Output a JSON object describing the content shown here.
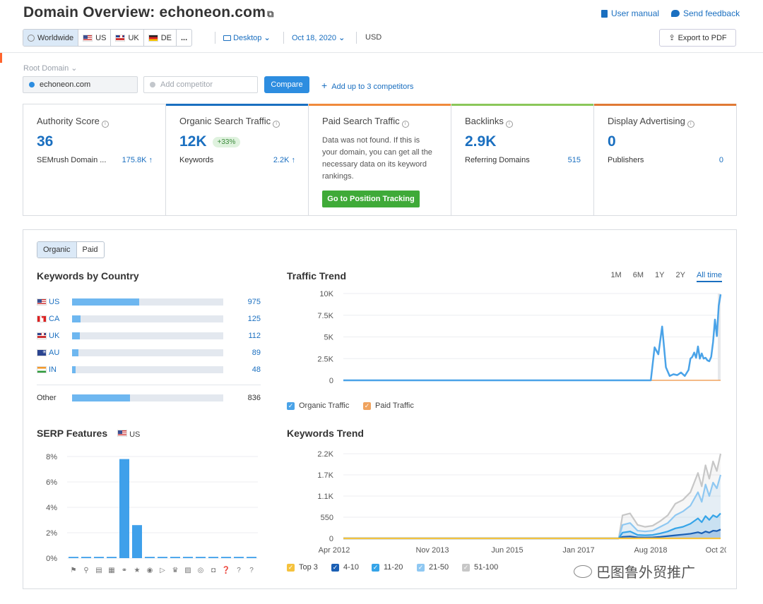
{
  "header": {
    "title_prefix": "Domain Overview:",
    "domain": "echoneon.com",
    "user_manual": "User manual",
    "send_feedback": "Send feedback",
    "export_pdf": "Export to PDF"
  },
  "filters": {
    "databases": [
      {
        "label": "Worldwide",
        "flag": "globe",
        "active": true
      },
      {
        "label": "US",
        "flag": "us"
      },
      {
        "label": "UK",
        "flag": "uk"
      },
      {
        "label": "DE",
        "flag": "de"
      },
      {
        "label": "..."
      }
    ],
    "device": "Desktop",
    "date": "Oct 18, 2020",
    "currency": "USD"
  },
  "compare": {
    "label": "Root Domain",
    "domain_value": "echoneon.com",
    "competitor_placeholder": "Add competitor",
    "button": "Compare",
    "add_up": "Add up to 3 competitors"
  },
  "cards": {
    "authority": {
      "title": "Authority Score",
      "value": "36",
      "sub_label": "SEMrush Domain ...",
      "sub_value": "175.8K ↑"
    },
    "organic": {
      "title": "Organic Search Traffic",
      "value": "12K",
      "badge": "+33%",
      "sub_label": "Keywords",
      "sub_value": "2.2K ↑"
    },
    "paid": {
      "title": "Paid Search Traffic",
      "text": "Data was not found. If this is your domain, you can get all the necessary data on its keyword rankings.",
      "button": "Go to Position Tracking"
    },
    "backlinks": {
      "title": "Backlinks",
      "value": "2.9K",
      "sub_label": "Referring Domains",
      "sub_value": "515"
    },
    "display": {
      "title": "Display Advertising",
      "value": "0",
      "sub_label": "Publishers",
      "sub_value": "0"
    }
  },
  "colors": {
    "accent": "#1a6fc0",
    "organic": "#4aa3e8",
    "paid": "#f0a35e",
    "green": "#3faa38"
  },
  "toggle": {
    "organic": "Organic",
    "paid": "Paid"
  },
  "keywords_by_country": {
    "title": "Keywords by Country",
    "rows": [
      {
        "code": "US",
        "flag": "us",
        "value": 975
      },
      {
        "code": "CA",
        "flag": "ca",
        "value": 125
      },
      {
        "code": "UK",
        "flag": "uk",
        "value": 112
      },
      {
        "code": "AU",
        "flag": "au",
        "value": 89
      },
      {
        "code": "IN",
        "flag": "in",
        "value": 48
      }
    ],
    "other": {
      "label": "Other",
      "value": 836
    },
    "max": 2185
  },
  "serp": {
    "title": "SERP Features",
    "country": "US"
  },
  "traffic_trend": {
    "title": "Traffic Trend",
    "ranges": [
      "1M",
      "6M",
      "1Y",
      "2Y",
      "All time"
    ],
    "selected_range": "All time",
    "legend_organic": "Organic Traffic",
    "legend_paid": "Paid Traffic"
  },
  "keywords_trend": {
    "title": "Keywords Trend",
    "legend": [
      "Top 3",
      "4-10",
      "11-20",
      "21-50",
      "51-100"
    ]
  },
  "watermark": "巴图鲁外贸推广",
  "chart_data": [
    {
      "type": "line",
      "name": "traffic_trend",
      "title": "Traffic Trend",
      "yticks": [
        "0",
        "2.5K",
        "5K",
        "7.5K",
        "10K"
      ],
      "ylim": [
        0,
        10000
      ],
      "xlim": [
        0,
        100
      ],
      "series": [
        {
          "name": "Organic Traffic",
          "color": "#4aa3e8",
          "x": [
            0,
            81.5,
            82.5,
            83.5,
            84.5,
            85.5,
            86.5,
            87.5,
            88.5,
            89.5,
            90.5,
            91.5,
            92,
            92.5,
            93,
            93.5,
            94,
            94.5,
            95,
            95.5,
            96,
            96.5,
            97,
            97.5,
            98,
            98.5,
            99,
            99.5,
            100
          ],
          "y": [
            0,
            0,
            3800,
            3000,
            6200,
            1500,
            500,
            700,
            600,
            900,
            500,
            1200,
            2500,
            2700,
            3200,
            2600,
            3900,
            2500,
            3100,
            2500,
            2600,
            2300,
            2200,
            2700,
            4400,
            7000,
            5100,
            8600,
            9900
          ]
        },
        {
          "name": "Paid Traffic",
          "color": "#f0a35e",
          "x": [
            0,
            100
          ],
          "y": [
            0,
            0
          ]
        }
      ]
    },
    {
      "type": "area",
      "name": "keywords_trend",
      "title": "Keywords Trend",
      "xticks": [
        "Apr 2012",
        "Nov 2013",
        "Jun 2015",
        "Jan 2017",
        "Aug 2018",
        "Oct 2020"
      ],
      "yticks": [
        "0",
        "550",
        "1.1K",
        "1.7K",
        "2.2K"
      ],
      "ylim": [
        0,
        2200
      ],
      "xlim": [
        0,
        100
      ],
      "series": [
        {
          "name": "51-100",
          "color": "#c7c7c7",
          "x": [
            0,
            73,
            74,
            76,
            78,
            80,
            82,
            84,
            86,
            88,
            90,
            92,
            94,
            95,
            96,
            97,
            98,
            99,
            100
          ],
          "y": [
            0,
            0,
            600,
            650,
            350,
            300,
            330,
            450,
            600,
            900,
            1000,
            1200,
            1700,
            1350,
            1900,
            1550,
            2000,
            1750,
            2200
          ]
        },
        {
          "name": "21-50",
          "color": "#8fc8f2",
          "x": [
            0,
            73,
            74,
            76,
            78,
            80,
            82,
            84,
            86,
            88,
            90,
            92,
            94,
            95,
            96,
            97,
            98,
            99,
            100
          ],
          "y": [
            0,
            0,
            350,
            400,
            200,
            180,
            200,
            300,
            400,
            600,
            700,
            850,
            1200,
            950,
            1400,
            1100,
            1450,
            1300,
            1650
          ]
        },
        {
          "name": "11-20",
          "color": "#35a4e8",
          "x": [
            0,
            73,
            74,
            76,
            78,
            80,
            82,
            84,
            86,
            88,
            90,
            92,
            94,
            95,
            96,
            97,
            98,
            99,
            100
          ],
          "y": [
            0,
            0,
            150,
            180,
            90,
            80,
            90,
            130,
            180,
            260,
            300,
            380,
            520,
            420,
            580,
            480,
            600,
            550,
            650
          ]
        },
        {
          "name": "4-10",
          "color": "#1a5fb4",
          "x": [
            0,
            73,
            74,
            76,
            78,
            80,
            82,
            84,
            86,
            88,
            90,
            92,
            94,
            95,
            96,
            97,
            98,
            99,
            100
          ],
          "y": [
            0,
            0,
            40,
            50,
            25,
            20,
            25,
            40,
            60,
            80,
            100,
            120,
            160,
            130,
            180,
            150,
            200,
            190,
            230
          ]
        },
        {
          "name": "Top 3",
          "color": "#f5c23d",
          "x": [
            0,
            100
          ],
          "y": [
            0,
            0
          ]
        }
      ]
    },
    {
      "type": "bar",
      "name": "serp_features",
      "title": "SERP Features",
      "yticks": [
        "0%",
        "2%",
        "4%",
        "6%",
        "8%"
      ],
      "ylim": [
        0,
        8
      ],
      "categories": [
        "Featured snippet",
        "Local pack",
        "Reviews",
        "Sitelinks",
        "Image pack",
        "Top stories",
        "Video",
        "Featured video",
        "Knowledge panel",
        "Image",
        "Shopping ads",
        "Carousel",
        "Instant answer",
        "FAQ",
        "People also ask"
      ],
      "values": [
        0.1,
        0.1,
        0.1,
        0.1,
        7.8,
        2.6,
        0.1,
        0.1,
        0.1,
        0.1,
        0.1,
        0.1,
        0.1,
        0.1,
        0.1
      ]
    }
  ]
}
